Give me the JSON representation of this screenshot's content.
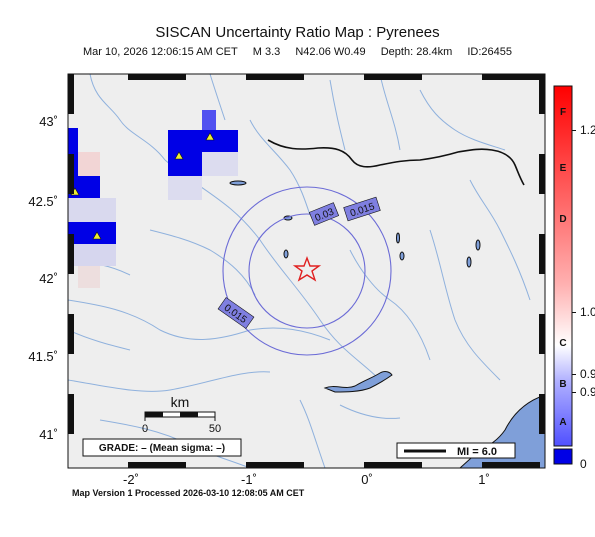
{
  "title": "SISCAN Uncertainty Ratio Map : Pyrenees",
  "subtitle": {
    "datetime": "Mar 10, 2026 12:06:15 AM CET",
    "magnitude": "M 3.3",
    "location": "N42.06 W0.49",
    "depth": "Depth: 28.4km",
    "event_id": "ID:26455"
  },
  "map": {
    "y_ticks": [
      "43˚",
      "42.5˚",
      "42˚",
      "41.5˚",
      "41˚"
    ],
    "x_ticks": [
      "-2˚",
      "-1˚",
      "0˚",
      "1˚"
    ],
    "contours": [
      "0.015",
      "0.03",
      "0.015"
    ],
    "scale_bar": {
      "unit": "km",
      "labels": [
        "0",
        "50"
      ]
    },
    "grade_box": "GRADE: – (Mean sigma: –)",
    "mi_box": "MI = 6.0",
    "colors": {
      "land": "#eeeeee",
      "sea": "#7f9fd9",
      "rivers": "#8fb1dd",
      "contour": "#6b6bd6",
      "contour_label_fill": "#7f7fe0",
      "high_ratio": "#0000e6",
      "epicenter": "#e02020",
      "station": "#eded33",
      "border": "#111111"
    }
  },
  "colorbar": {
    "letters": [
      "F",
      "E",
      "D",
      "C",
      "B",
      "A"
    ],
    "numbers": [
      "1.2",
      "1.0",
      "0.9",
      "0.9",
      "0"
    ],
    "top_color": "#ff0000",
    "mid_color": "#ffffff",
    "bottom_color": "#0000ff"
  },
  "footer": "Map Version 1 Processed 2026-03-10 12:08:05 AM CET"
}
